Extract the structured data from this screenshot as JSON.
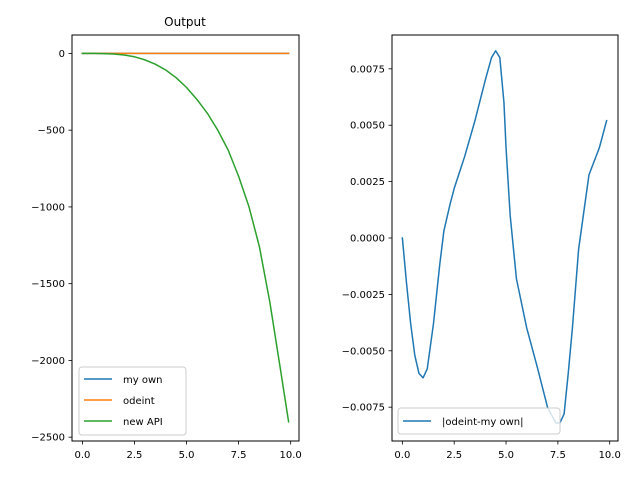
{
  "chart_data": [
    {
      "type": "line",
      "title": "Output",
      "xlabel": "",
      "ylabel": "",
      "xlim": [
        -0.5,
        10.4
      ],
      "ylim": [
        -2525,
        120
      ],
      "xticks": [
        0,
        2.5,
        5,
        7.5,
        10
      ],
      "xtick_labels": [
        "0.0",
        "2.5",
        "5.0",
        "7.5",
        "10.0"
      ],
      "yticks": [
        0,
        -500,
        -1000,
        -1500,
        -2000,
        -2500
      ],
      "ytick_labels": [
        "0",
        "−500",
        "−1000",
        "−1500",
        "−2000",
        "−2500"
      ],
      "grid": false,
      "legend_position": "lower-left",
      "series": [
        {
          "name": "my own",
          "color": "#1f77b4",
          "x": [
            0,
            1,
            2,
            3,
            4,
            5,
            6,
            7,
            8,
            9,
            9.9
          ],
          "y": [
            0,
            0,
            0,
            0,
            0,
            0,
            0,
            0,
            0,
            0,
            0
          ]
        },
        {
          "name": "odeint",
          "color": "#ff7f0e",
          "x": [
            0,
            1,
            2,
            3,
            4,
            5,
            6,
            7,
            8,
            9,
            9.9
          ],
          "y": [
            0,
            0,
            0,
            0,
            0,
            0,
            0,
            0,
            0,
            0,
            0
          ]
        },
        {
          "name": "new API",
          "color": "#2ca02c",
          "x": [
            0,
            0.5,
            1,
            1.5,
            2,
            2.5,
            3,
            3.5,
            4,
            4.5,
            5,
            5.5,
            6,
            6.5,
            7,
            7.5,
            8,
            8.5,
            9,
            9.5,
            9.9
          ],
          "y": [
            0,
            0,
            -1,
            -4,
            -10,
            -22,
            -42,
            -70,
            -108,
            -158,
            -222,
            -300,
            -390,
            -500,
            -630,
            -800,
            -1000,
            -1260,
            -1620,
            -2050,
            -2400
          ]
        }
      ]
    },
    {
      "type": "line",
      "title": "",
      "xlabel": "",
      "ylabel": "",
      "xlim": [
        -0.5,
        10.4
      ],
      "ylim": [
        -0.009,
        0.009
      ],
      "xticks": [
        0,
        2.5,
        5,
        7.5,
        10
      ],
      "xtick_labels": [
        "0.0",
        "2.5",
        "5.0",
        "7.5",
        "10.0"
      ],
      "yticks": [
        0.0075,
        0.005,
        0.0025,
        0,
        -0.0025,
        -0.005,
        -0.0075
      ],
      "ytick_labels": [
        "0.0075",
        "0.0050",
        "0.0025",
        "0.0000",
        "−0.0025",
        "−0.0050",
        "−0.0075"
      ],
      "grid": false,
      "legend_position": "lower-left",
      "series": [
        {
          "name": "|odeint-my own|",
          "color": "#1f77b4",
          "x": [
            0,
            0.2,
            0.4,
            0.6,
            0.8,
            1.0,
            1.2,
            1.5,
            1.8,
            2.0,
            2.3,
            2.5,
            3.0,
            3.5,
            4.0,
            4.3,
            4.5,
            4.7,
            4.9,
            5.0,
            5.2,
            5.5,
            6.0,
            6.5,
            7.0,
            7.4,
            7.6,
            7.8,
            8.0,
            8.2,
            8.5,
            9.0,
            9.5,
            9.85
          ],
          "y": [
            0,
            -0.002,
            -0.0038,
            -0.0052,
            -0.006,
            -0.0062,
            -0.0058,
            -0.0038,
            -0.0012,
            0.0003,
            0.0015,
            0.0022,
            0.0036,
            0.0052,
            0.007,
            0.008,
            0.0083,
            0.008,
            0.006,
            0.004,
            0.001,
            -0.0018,
            -0.004,
            -0.0057,
            -0.0075,
            -0.0082,
            -0.0082,
            -0.0078,
            -0.006,
            -0.004,
            -0.0005,
            0.0028,
            0.004,
            0.0052
          ]
        }
      ]
    }
  ]
}
